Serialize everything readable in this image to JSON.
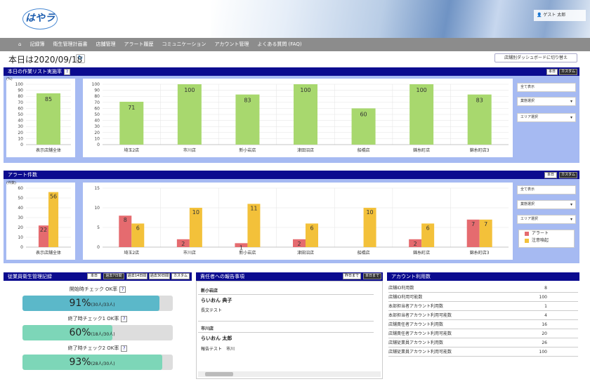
{
  "header": {
    "logo_text": "はやラ",
    "user_label": "ゲスト 太郎"
  },
  "nav": {
    "items": [
      "記録簿",
      "衛生管理計画書",
      "店舗管理",
      "アラート履歴",
      "コミュニケーション",
      "アカウント管理",
      "よくある質問 (FAQ)"
    ]
  },
  "today_label": "本日は2020/09/18",
  "switch_button": "店舗別ダッシュボードに切り替え",
  "task_section": {
    "title": "本日の作業リスト実施率",
    "btn_today": "本日",
    "btn_custom": "カスタム",
    "unit": "(%)",
    "filters": [
      "全て表示",
      "業態選択",
      "エリア選択"
    ]
  },
  "alert_section": {
    "title": "アラート件数",
    "btn_today": "本日",
    "btn_custom": "カスタム",
    "unit": "(件数)",
    "filters": [
      "全て表示",
      "業態選択",
      "エリア選択"
    ],
    "legend": [
      "アラート",
      "注意喚起"
    ]
  },
  "chart_data": [
    {
      "type": "bar",
      "categories": [
        "表示店舗全体"
      ],
      "values": [
        85
      ],
      "ylim": [
        0,
        100
      ],
      "yticks": [
        0,
        10,
        20,
        30,
        40,
        50,
        60,
        70,
        80,
        90,
        100
      ]
    },
    {
      "type": "bar",
      "categories": [
        "埼玉2店",
        "市川店",
        "新小岩店",
        "津田沼店",
        "船橋店",
        "錦糸町店",
        "錦糸町店3"
      ],
      "values": [
        71,
        100,
        83,
        100,
        60,
        100,
        83
      ],
      "ylim": [
        0,
        100
      ],
      "yticks": [
        0,
        10,
        20,
        30,
        40,
        50,
        60,
        70,
        80,
        90,
        100
      ]
    },
    {
      "type": "bar",
      "categories": [
        "表示店舗全体"
      ],
      "series": [
        {
          "name": "アラート",
          "values": [
            22
          ]
        },
        {
          "name": "注意喚起",
          "values": [
            56
          ]
        }
      ],
      "ylim": [
        0,
        60
      ],
      "yticks": [
        0,
        10,
        20,
        30,
        40,
        50,
        60
      ]
    },
    {
      "type": "bar",
      "categories": [
        "埼玉2店",
        "市川店",
        "新小岩店",
        "津田沼店",
        "船橋店",
        "錦糸町店",
        "錦糸町店3"
      ],
      "series": [
        {
          "name": "アラート",
          "values": [
            8,
            2,
            1,
            2,
            0,
            2,
            7
          ]
        },
        {
          "name": "注意喚起",
          "values": [
            6,
            10,
            11,
            6,
            10,
            6,
            7
          ]
        }
      ],
      "ylim": [
        0,
        15
      ],
      "yticks": [
        0,
        5,
        10,
        15
      ]
    }
  ],
  "health": {
    "title": "従業員衛生管理記録",
    "tabs": [
      "本日",
      "過去7日間",
      "過去14日間",
      "過去30日間",
      "カスタム"
    ],
    "gauges": [
      {
        "label": "開始時チェック OK率",
        "percent": "91%",
        "detail": "(30人/33人)",
        "ratio": 0.91,
        "color": "#5bb8c9"
      },
      {
        "label": "終了時チェック1 OK率",
        "percent": "60%",
        "detail": "(18人/30人)",
        "ratio": 0.6,
        "color": "#7dd6b8"
      },
      {
        "label": "終了時チェック2 OK率",
        "percent": "93%",
        "detail": "(28人/30人)",
        "ratio": 0.93,
        "color": "#7dd6b8"
      }
    ]
  },
  "report": {
    "title": "責任者への報告事項",
    "btn_yesterday": "昨日まで",
    "btn_today": "本日まで",
    "entries": [
      {
        "store": "新小岩店",
        "person": "らいおん 典子",
        "text": "長文テスト"
      },
      {
        "store": "市川店",
        "person": "らいおん 太郎",
        "text": "報告テスト　市川"
      }
    ]
  },
  "accounts": {
    "title": "アカウント利用数",
    "rows": [
      {
        "label": "店舗ID利用数",
        "value": "8"
      },
      {
        "label": "店舗ID利用可能数",
        "value": "100"
      },
      {
        "label": "本部担当者アカウント利用数",
        "value": "1"
      },
      {
        "label": "本部担当者アカウント利用可能数",
        "value": "4"
      },
      {
        "label": "店舗責任者アカウント利用数",
        "value": "16"
      },
      {
        "label": "店舗責任者アカウント利用可能数",
        "value": "20"
      },
      {
        "label": "店舗従業員アカウント利用数",
        "value": "26"
      },
      {
        "label": "店舗従業員アカウント利用可能数",
        "value": "100"
      }
    ]
  }
}
